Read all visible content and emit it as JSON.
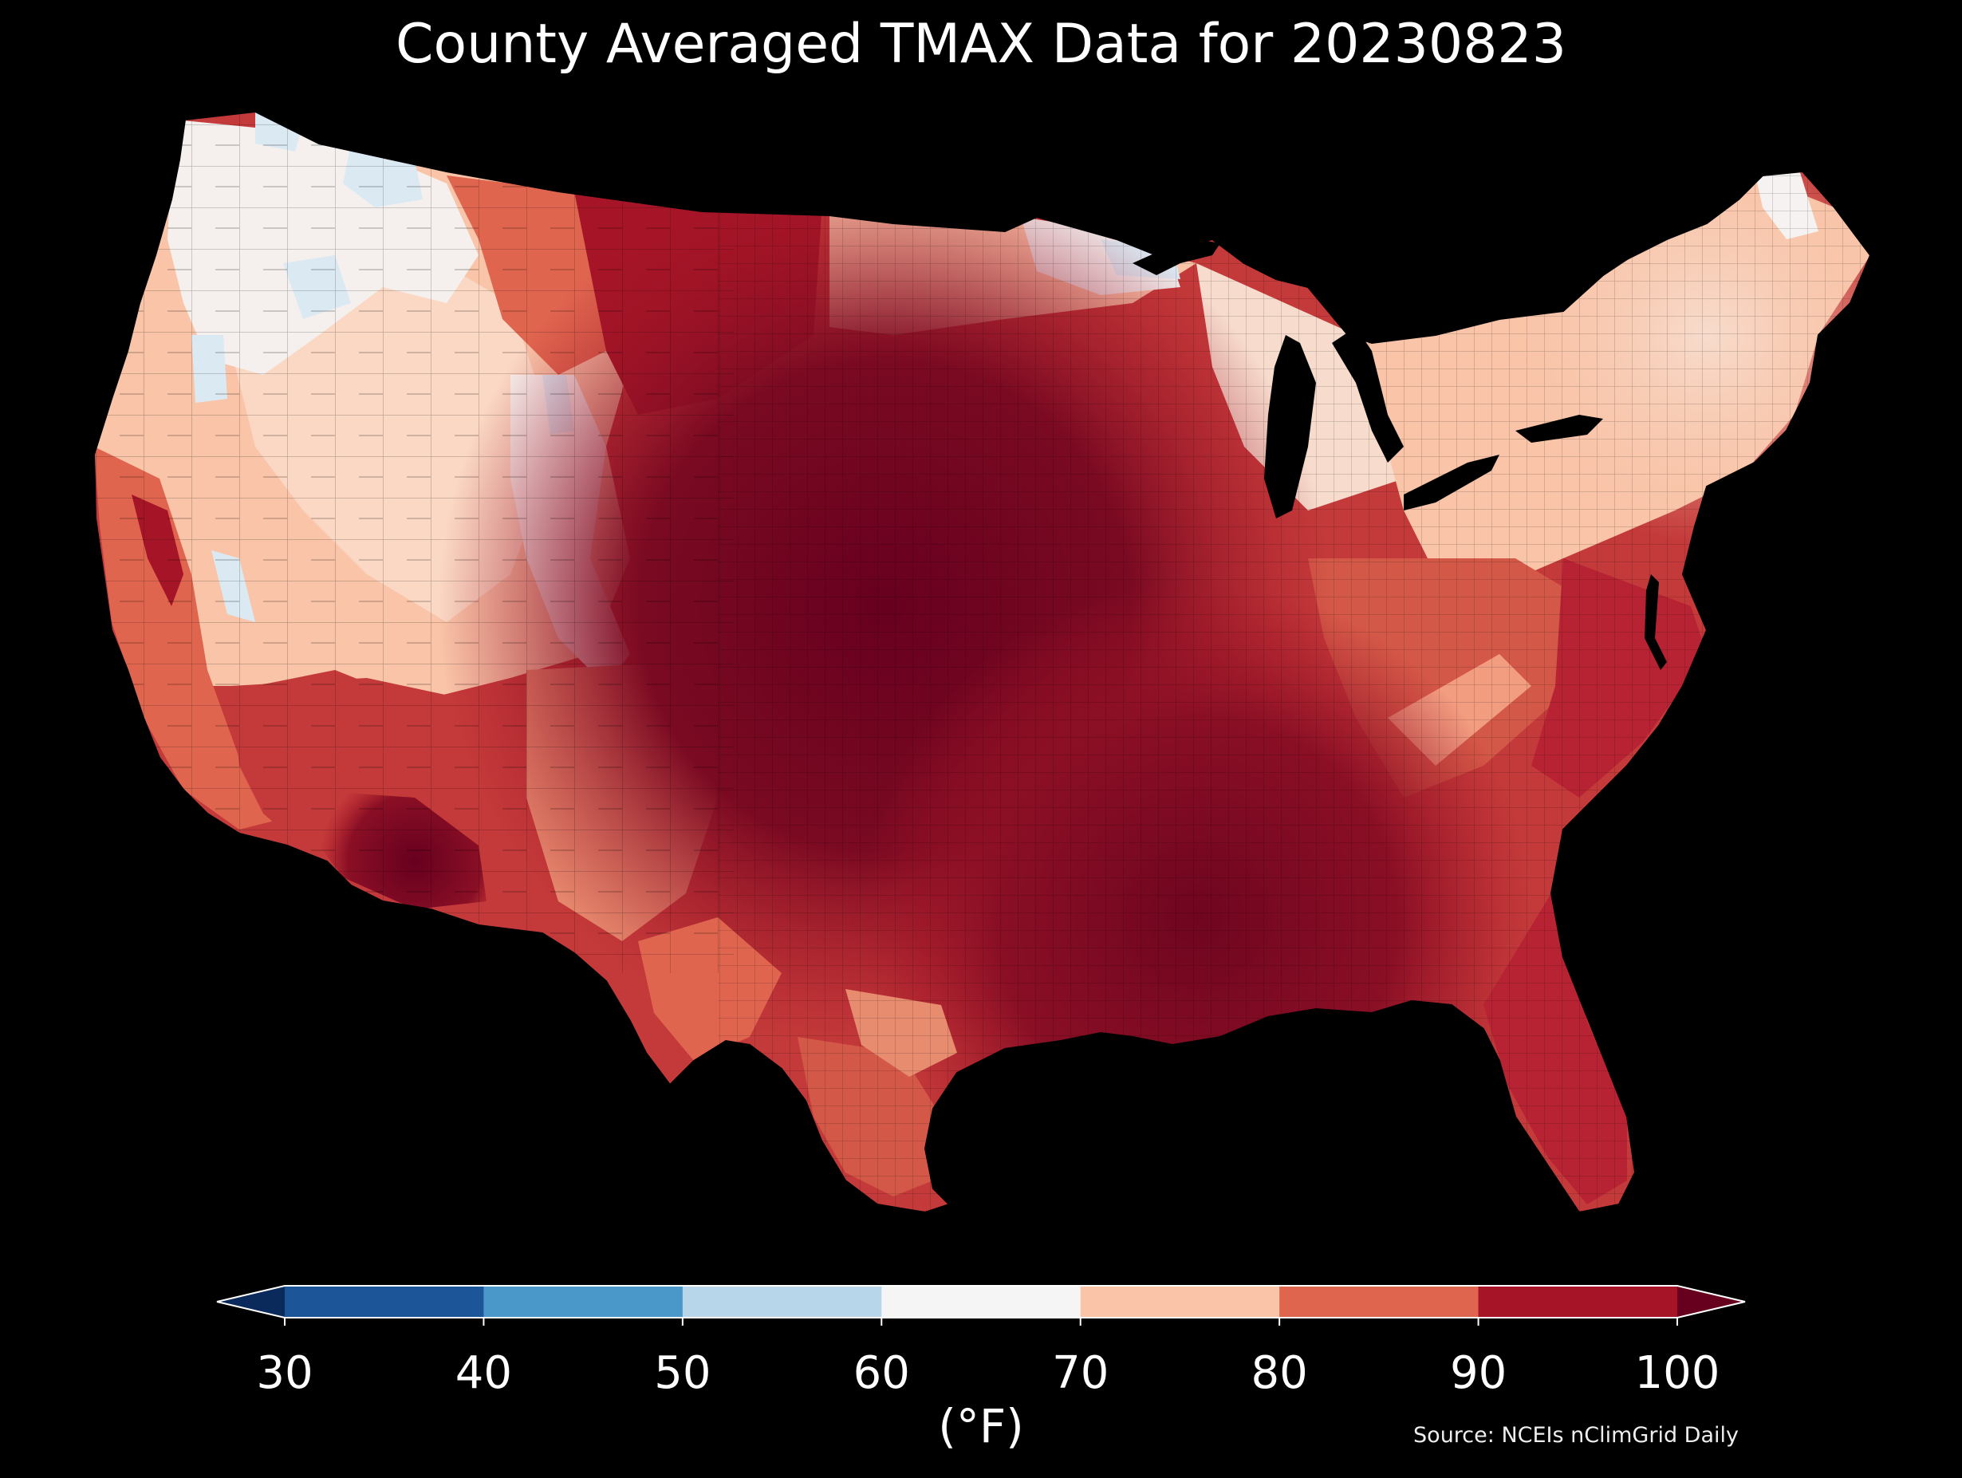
{
  "title": "County Averaged TMAX Data for 20230823",
  "source": "Source: NCEIs nClimGrid Daily",
  "colorbar": {
    "unit_label": "(°F)",
    "ticks": [
      "30",
      "40",
      "50",
      "60",
      "70",
      "80",
      "90",
      "100"
    ],
    "bins": [
      {
        "from": 30,
        "to": 40,
        "color": "#1c5598"
      },
      {
        "from": 40,
        "to": 50,
        "color": "#4a98c9"
      },
      {
        "from": 50,
        "to": 60,
        "color": "#b7d6ea"
      },
      {
        "from": 60,
        "to": 70,
        "color": "#f5f5f5"
      },
      {
        "from": 70,
        "to": 80,
        "color": "#f9c4a8"
      },
      {
        "from": 80,
        "to": 90,
        "color": "#e0654f"
      },
      {
        "from": 90,
        "to": 100,
        "color": "#a51527"
      }
    ],
    "under_color": "#0b2a5c",
    "over_color": "#67001f",
    "extend": "both"
  },
  "map": {
    "region": "Contiguous United States",
    "variable": "TMAX",
    "date": "20230823",
    "hottest_color": "#67001f",
    "background_color": "#000000"
  }
}
